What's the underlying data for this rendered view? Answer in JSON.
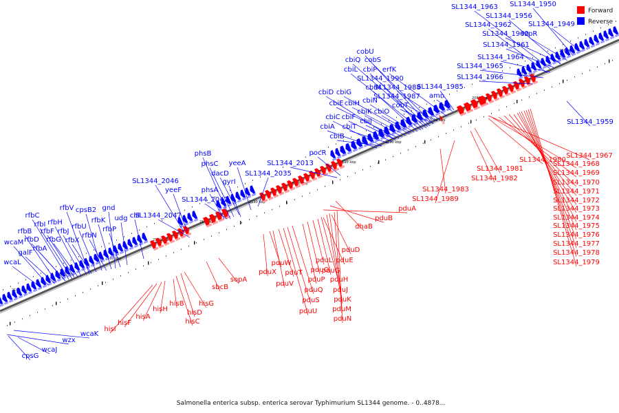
{
  "caption": "Salmonella enterica subsp. enterica serovar Typhimurium SL1344 genome. - 0..4878...",
  "legend": {
    "forward": "Forward",
    "reverse": "Reverse"
  },
  "colors": {
    "forward": "#ff0000",
    "reverse": "#0000ff",
    "backbone": "#555555"
  },
  "ticks": [
    "2060 kbp",
    "2070 kbp",
    "2080 kbp",
    "2090 kbp",
    "2100 kbp",
    "2110 kbp",
    "2120 kbp",
    "2130 kbp",
    "2140 kbp",
    "2150 kbp",
    "2160 kbp",
    "2170 kbp",
    "2180 kbp"
  ],
  "reverse_genes": [
    "SL1344_1963",
    "SL1344_1950",
    "SL1344_1956",
    "SL1344_1962",
    "SL1344_1949",
    "SL1344_1960",
    "rzpR",
    "SL1344_1961",
    "SL1344_1964",
    "SL1344_1965",
    "SL1344_1966",
    "SL1344_1959",
    "cobU",
    "cbiQ",
    "cobS",
    "cbiL",
    "cbiP",
    "erfK",
    "SL1344_1990",
    "cbiM",
    "SL1344_1988",
    "cbiD",
    "cbiG",
    "SL1344_1987",
    "SL1344_1985",
    "cbiE",
    "cbiH",
    "cbiN",
    "cobT",
    "amn",
    "cbiC",
    "cbiF",
    "cbiK",
    "cbiO",
    "cbiJ",
    "cbiA",
    "cbiT",
    "cbiB",
    "pocR",
    "SL1344_2013",
    "phsB",
    "phsC",
    "yeeA",
    "dacD",
    "SL1344_2035",
    "phsA",
    "gyrI",
    "SL1344_2046",
    "yeeF",
    "SL1344_2042",
    "SL1344_2047",
    "cld",
    "rfbC",
    "rfbV",
    "cpsB2",
    "gnd",
    "rfbI",
    "rfbH",
    "rfbK",
    "udg",
    "rfbB",
    "rfbF",
    "rfbJ",
    "rfbU",
    "rfbP",
    "wcaM",
    "rfbD",
    "rfbG",
    "rfbX",
    "rfbN",
    "galF",
    "rfbA",
    "wcaL",
    "wcaK",
    "wzx",
    "wcaJ",
    "cpsG"
  ],
  "forward_genes": [
    "SL1344_1967",
    "SL1344_1980",
    "SL1344_1968",
    "SL1344_1981",
    "SL1344_1969",
    "SL1344_1982",
    "SL1344_1970",
    "SL1344_1983",
    "SL1344_1971",
    "SL1344_1989",
    "SL1344_1972",
    "SL1344_1973",
    "SL1344_1974",
    "SL1344_1975",
    "SL1344_1976",
    "SL1344_1977",
    "SL1344_1978",
    "SL1344_1979",
    "pduA",
    "pduB",
    "dhaB",
    "pduD",
    "pduE",
    "pduX",
    "pduL",
    "pduW",
    "pduG",
    "pduO",
    "pduT",
    "pduH",
    "pduP",
    "pduV",
    "pduJ",
    "pduQ",
    "pduK",
    "pduS",
    "pduM",
    "pduU",
    "pduN",
    "sbcB",
    "sopA",
    "hisG",
    "hisB",
    "hisD",
    "hisH",
    "hisC",
    "hisA",
    "hisF",
    "hisI"
  ]
}
